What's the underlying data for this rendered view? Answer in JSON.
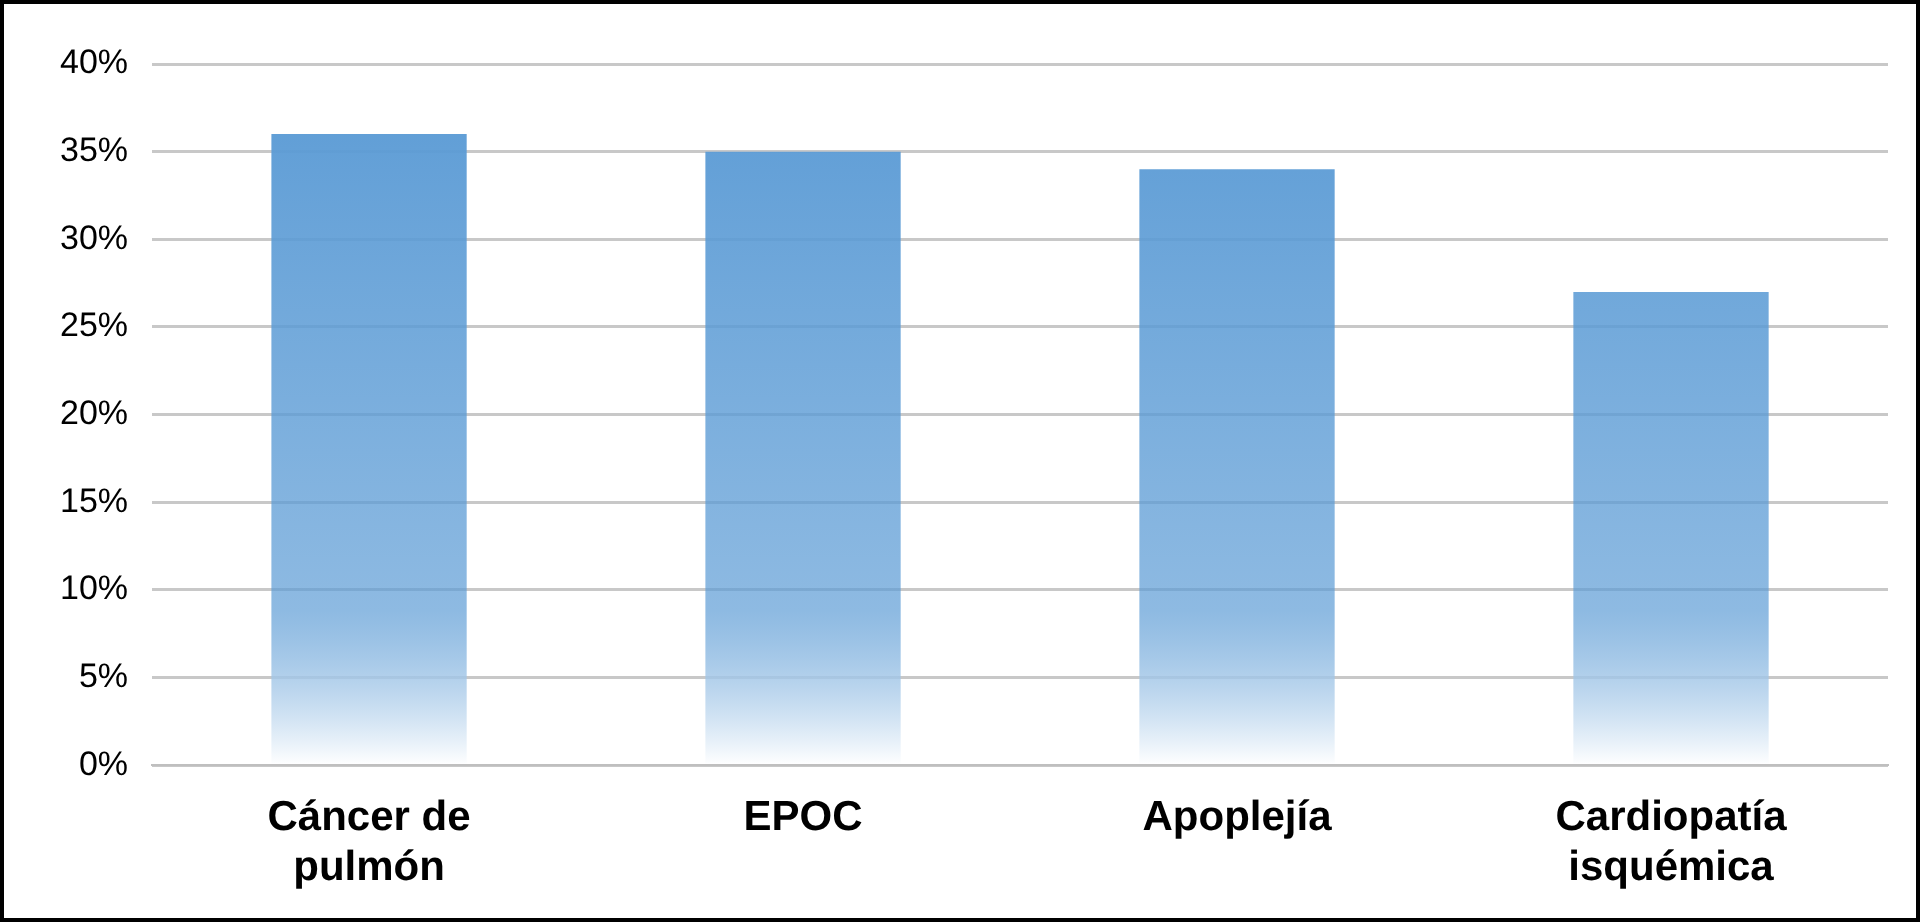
{
  "chart_data": {
    "type": "bar",
    "categories": [
      "Cáncer de pulmón",
      "EPOC",
      "Apoplejía",
      "Cardiopatía isquémica"
    ],
    "values": [
      36,
      35,
      34,
      27
    ],
    "color": "#5b9bd5",
    "ylim": [
      0,
      40
    ],
    "yticks": [
      {
        "value": 0,
        "label": "0%"
      },
      {
        "value": 5,
        "label": "5%"
      },
      {
        "value": 10,
        "label": "10%"
      },
      {
        "value": 15,
        "label": "15%"
      },
      {
        "value": 20,
        "label": "20%"
      },
      {
        "value": 25,
        "label": "25%"
      },
      {
        "value": 30,
        "label": "30%"
      },
      {
        "value": 35,
        "label": "35%"
      },
      {
        "value": 40,
        "label": "40%"
      }
    ],
    "grid": "y",
    "legend": false
  }
}
